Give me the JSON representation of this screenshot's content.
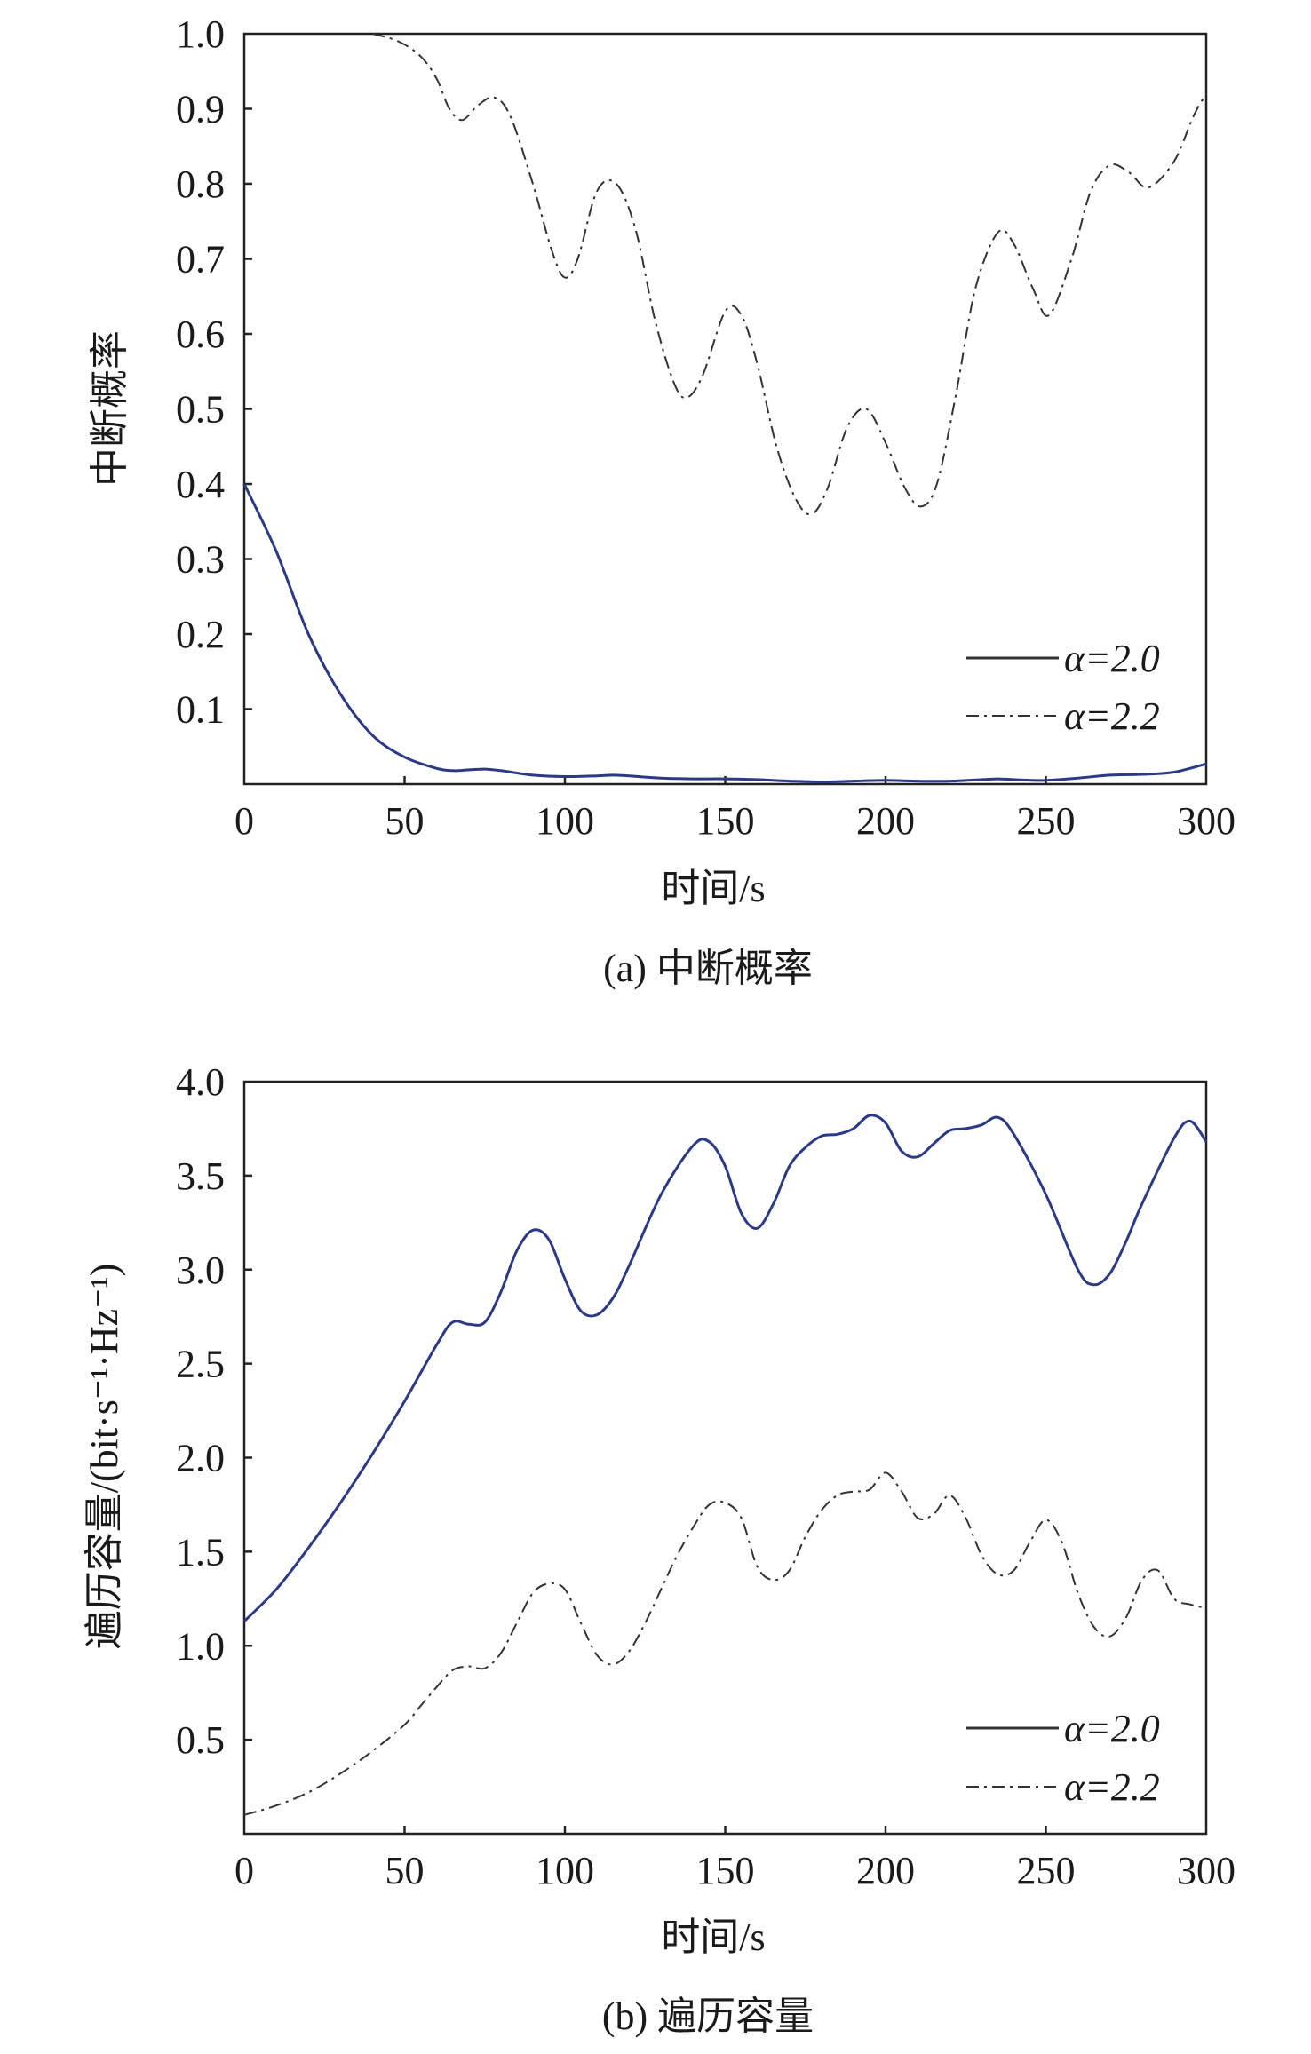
{
  "colors": {
    "series_solid": "#2c3a86",
    "series_dash": "#333333",
    "axis": "#222222"
  },
  "chart_data": [
    {
      "type": "line",
      "caption": "(a) 中断概率",
      "title": "",
      "xlabel": "时间/s",
      "ylabel": "中断概率",
      "xlim": [
        0,
        300
      ],
      "ylim": [
        0,
        1.0
      ],
      "xticks": [
        0,
        50,
        100,
        150,
        200,
        250,
        300
      ],
      "xtick_labels": [
        "0",
        "50",
        "100",
        "150",
        "200",
        "250",
        "300"
      ],
      "yticks": [
        0.1,
        0.2,
        0.3,
        0.4,
        0.5,
        0.6,
        0.7,
        0.8,
        0.9,
        1.0
      ],
      "ytick_labels": [
        "0.1",
        "0.2",
        "0.3",
        "0.4",
        "0.5",
        "0.6",
        "0.7",
        "0.8",
        "0.9",
        "1.0"
      ],
      "legend_position": "bottom-right",
      "series": [
        {
          "name": "α=2.0",
          "style": "solid",
          "x": [
            0,
            10,
            20,
            30,
            40,
            50,
            60,
            65,
            70,
            75,
            80,
            90,
            100,
            110,
            115,
            120,
            130,
            140,
            150,
            160,
            170,
            180,
            190,
            200,
            210,
            220,
            230,
            235,
            240,
            250,
            260,
            270,
            280,
            290,
            300
          ],
          "y": [
            0.4,
            0.31,
            0.2,
            0.12,
            0.065,
            0.036,
            0.021,
            0.018,
            0.019,
            0.02,
            0.018,
            0.012,
            0.01,
            0.011,
            0.012,
            0.011,
            0.008,
            0.007,
            0.007,
            0.006,
            0.004,
            0.003,
            0.004,
            0.005,
            0.004,
            0.004,
            0.006,
            0.007,
            0.006,
            0.005,
            0.008,
            0.012,
            0.013,
            0.016,
            0.027
          ]
        },
        {
          "name": "α=2.2",
          "style": "dashdot",
          "x": [
            40,
            48,
            55,
            60,
            64,
            68,
            73,
            78,
            83,
            90,
            96,
            100,
            104,
            110,
            116,
            122,
            128,
            134,
            138,
            143,
            150,
            155,
            160,
            166,
            172,
            177,
            182,
            188,
            194,
            200,
            206,
            211,
            216,
            222,
            228,
            235,
            240,
            246,
            251,
            258,
            264,
            270,
            276,
            282,
            290,
            296,
            300
          ],
          "y": [
            1.0,
            0.99,
            0.97,
            0.94,
            0.9,
            0.885,
            0.905,
            0.915,
            0.89,
            0.8,
            0.71,
            0.675,
            0.7,
            0.79,
            0.8,
            0.74,
            0.62,
            0.535,
            0.515,
            0.545,
            0.63,
            0.625,
            0.56,
            0.45,
            0.38,
            0.36,
            0.395,
            0.475,
            0.5,
            0.455,
            0.395,
            0.37,
            0.4,
            0.52,
            0.66,
            0.735,
            0.72,
            0.66,
            0.625,
            0.7,
            0.79,
            0.825,
            0.815,
            0.795,
            0.83,
            0.89,
            0.92
          ]
        }
      ]
    },
    {
      "type": "line",
      "caption": "(b) 遍历容量",
      "title": "",
      "xlabel": "时间/s",
      "ylabel": "遍历容量/(bit·s⁻¹·Hz⁻¹)",
      "xlim": [
        0,
        300
      ],
      "ylim": [
        0,
        4.0
      ],
      "xticks": [
        0,
        50,
        100,
        150,
        200,
        250,
        300
      ],
      "xtick_labels": [
        "0",
        "50",
        "100",
        "150",
        "200",
        "250",
        "300"
      ],
      "yticks": [
        0.5,
        1.0,
        1.5,
        2.0,
        2.5,
        3.0,
        3.5,
        4.0
      ],
      "ytick_labels": [
        "0.5",
        "1.0",
        "1.5",
        "2.0",
        "2.5",
        "3.0",
        "3.5",
        "4.0"
      ],
      "legend_position": "bottom-right",
      "series": [
        {
          "name": "α=2.0",
          "style": "solid",
          "x": [
            0,
            10,
            20,
            30,
            40,
            50,
            60,
            65,
            70,
            75,
            80,
            85,
            90,
            95,
            100,
            105,
            110,
            115,
            120,
            130,
            140,
            145,
            150,
            155,
            160,
            165,
            170,
            175,
            180,
            185,
            190,
            195,
            200,
            205,
            210,
            215,
            220,
            225,
            230,
            235,
            240,
            250,
            260,
            265,
            270,
            275,
            280,
            290,
            295,
            300
          ],
          "y": [
            1.13,
            1.3,
            1.52,
            1.76,
            2.02,
            2.3,
            2.6,
            2.72,
            2.71,
            2.72,
            2.88,
            3.1,
            3.21,
            3.16,
            2.95,
            2.78,
            2.76,
            2.85,
            3.02,
            3.4,
            3.66,
            3.68,
            3.55,
            3.3,
            3.22,
            3.35,
            3.55,
            3.65,
            3.71,
            3.72,
            3.75,
            3.82,
            3.78,
            3.63,
            3.6,
            3.67,
            3.74,
            3.75,
            3.77,
            3.81,
            3.72,
            3.4,
            3.0,
            2.92,
            2.98,
            3.15,
            3.35,
            3.7,
            3.79,
            3.68
          ]
        },
        {
          "name": "α=2.2",
          "style": "dashdot",
          "x": [
            0,
            10,
            20,
            30,
            40,
            50,
            55,
            60,
            65,
            70,
            75,
            80,
            85,
            90,
            95,
            100,
            105,
            110,
            115,
            120,
            125,
            130,
            135,
            140,
            145,
            150,
            155,
            160,
            165,
            170,
            175,
            180,
            185,
            190,
            195,
            200,
            205,
            210,
            215,
            220,
            225,
            230,
            235,
            240,
            245,
            250,
            255,
            260,
            265,
            270,
            275,
            280,
            285,
            290,
            295,
            300
          ],
          "y": [
            0.1,
            0.15,
            0.22,
            0.32,
            0.44,
            0.58,
            0.68,
            0.78,
            0.87,
            0.89,
            0.88,
            0.96,
            1.12,
            1.28,
            1.33,
            1.3,
            1.12,
            0.95,
            0.9,
            0.97,
            1.12,
            1.3,
            1.48,
            1.63,
            1.75,
            1.76,
            1.68,
            1.42,
            1.35,
            1.4,
            1.58,
            1.72,
            1.8,
            1.82,
            1.83,
            1.92,
            1.82,
            1.68,
            1.7,
            1.8,
            1.68,
            1.48,
            1.38,
            1.4,
            1.55,
            1.67,
            1.55,
            1.28,
            1.1,
            1.05,
            1.15,
            1.35,
            1.4,
            1.25,
            1.22,
            1.2
          ]
        }
      ]
    }
  ]
}
